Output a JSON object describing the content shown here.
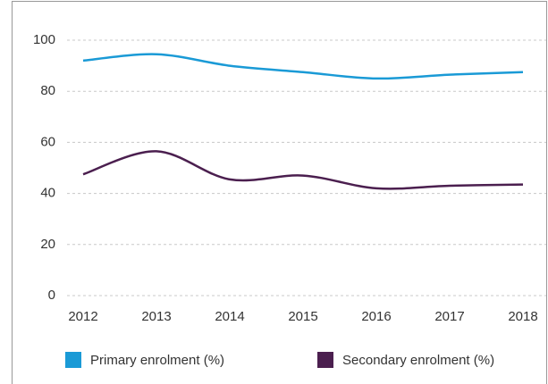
{
  "chart_data": {
    "type": "line",
    "categories": [
      "2012",
      "2013",
      "2014",
      "2015",
      "2016",
      "2017",
      "2018"
    ],
    "series": [
      {
        "name": "Primary enrolment (%)",
        "color": "#1a9ad6",
        "values": [
          92,
          94.5,
          90,
          87.5,
          85,
          86.5,
          87.5
        ]
      },
      {
        "name": "Secondary enrolment (%)",
        "color": "#4b1f4f",
        "values": [
          47.5,
          56.5,
          45.5,
          47,
          42,
          43,
          43.5
        ]
      }
    ],
    "ylim": [
      0,
      100
    ],
    "yticks": [
      0,
      20,
      40,
      60,
      80,
      100
    ],
    "grid": true,
    "legend": "bottom"
  }
}
